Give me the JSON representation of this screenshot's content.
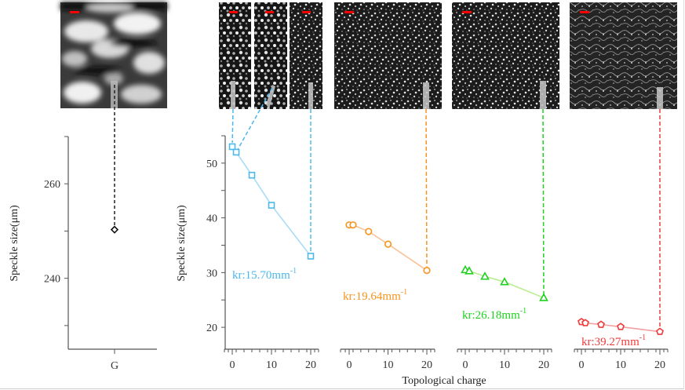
{
  "chart_data": [
    {
      "type": "scatter",
      "name": "G",
      "ylabel": "Speckle size(μm)",
      "xlabel": "",
      "ylim": [
        225,
        270
      ],
      "yticks": [
        240,
        260
      ],
      "categories": [
        "G"
      ],
      "series": [
        {
          "name": "G",
          "color": "#111111",
          "marker": "diamond",
          "x": [
            "G"
          ],
          "y": [
            250.3
          ]
        }
      ],
      "image": {
        "label": "G speckle pattern",
        "scale_bar_color": "#ff0000"
      }
    },
    {
      "type": "line",
      "name": "kr-15.70",
      "ylabel": "Speckle size(μm)",
      "xlim": [
        -1,
        22
      ],
      "xticks": [
        0,
        10,
        20
      ],
      "ylim": [
        16,
        55
      ],
      "yticks": [
        20,
        30,
        40,
        50
      ],
      "annotation": {
        "text": "kr:15.70mm",
        "sup": "-1"
      },
      "series": [
        {
          "name": "kr:15.70mm-1",
          "color": "#4db8ea",
          "line_color": "#a8dcf5",
          "marker": "square",
          "x": [
            0,
            1,
            5,
            10,
            20
          ],
          "y": [
            53.0,
            52.0,
            47.8,
            42.3,
            33.0
          ]
        }
      ],
      "images": [
        {
          "label": "l=0 speckle"
        },
        {
          "label": "l=1 speckle"
        },
        {
          "label": "l=20 speckle"
        }
      ]
    },
    {
      "type": "line",
      "name": "kr-19.64",
      "xlim": [
        -1,
        22
      ],
      "xticks": [
        0,
        10,
        20
      ],
      "ylim": [
        16,
        55
      ],
      "annotation": {
        "text": "kr:19.64mm",
        "sup": "-1"
      },
      "series": [
        {
          "name": "kr:19.64mm-1",
          "color": "#f7941d",
          "line_color": "#f9c39a",
          "marker": "circle",
          "x": [
            0,
            1,
            5,
            10,
            20
          ],
          "y": [
            38.7,
            38.7,
            37.5,
            35.2,
            30.4
          ]
        }
      ],
      "images": [
        {
          "label": "l=20 speckle"
        }
      ]
    },
    {
      "type": "line",
      "name": "kr-26.18",
      "xlim": [
        -1,
        22
      ],
      "xticks": [
        0,
        10,
        20
      ],
      "ylim": [
        16,
        55
      ],
      "annotation": {
        "text": "kr:26.18mm",
        "sup": "-1"
      },
      "series": [
        {
          "name": "kr:26.18mm-1",
          "color": "#1fd01f",
          "line_color": "#b8ee8f",
          "marker": "triangle",
          "x": [
            0,
            1,
            5,
            10,
            20
          ],
          "y": [
            30.5,
            30.3,
            29.3,
            28.3,
            25.4
          ]
        }
      ],
      "images": [
        {
          "label": "l=20 speckle"
        }
      ]
    },
    {
      "type": "line",
      "name": "kr-39.27",
      "xlim": [
        -1,
        22
      ],
      "xticks": [
        0,
        10,
        20
      ],
      "ylim": [
        16,
        55
      ],
      "annotation": {
        "text": "kr:39.27mm",
        "sup": "-1"
      },
      "series": [
        {
          "name": "kr:39.27mm-1",
          "color": "#ee3b3b",
          "line_color": "#f5a0a0",
          "marker": "pentagon",
          "x": [
            0,
            1,
            5,
            10,
            20
          ],
          "y": [
            21.0,
            20.8,
            20.5,
            20.1,
            19.2
          ]
        }
      ],
      "images": [
        {
          "label": "l=20 speckle"
        }
      ]
    }
  ],
  "shared_xlabel": "Topological charge",
  "category_label": "G"
}
